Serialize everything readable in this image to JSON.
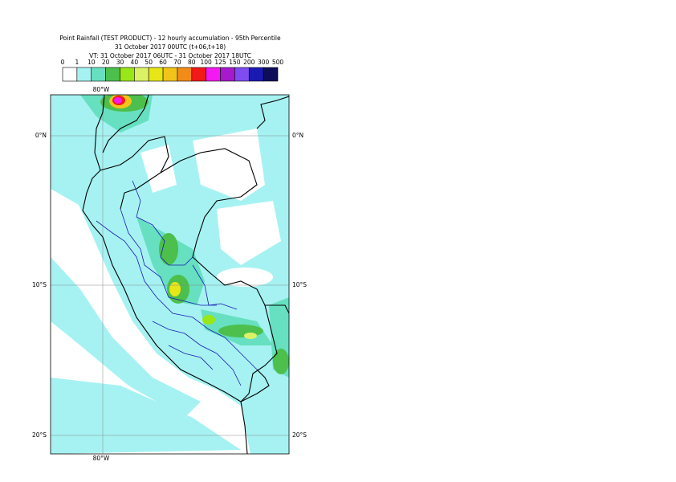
{
  "header": {
    "title_lines": [
      "Point Rainfall (TEST PRODUCT) - 12 hourly accumulation - 95th Percentile",
      "31 October 2017 00UTC (t+06,t+18)",
      "VT: 31 October 2017 06UTC - 31 October 2017 18UTC"
    ]
  },
  "legend": {
    "labels": [
      "0",
      "1",
      "10",
      "20",
      "30",
      "40",
      "50",
      "60",
      "70",
      "80",
      "100",
      "125",
      "150",
      "200",
      "300",
      "500"
    ],
    "colors": [
      "#ffffff",
      "#a6f2f2",
      "#66e0c0",
      "#4cbf4c",
      "#99e619",
      "#dcf266",
      "#e6e619",
      "#f2c419",
      "#f28c19",
      "#f21919",
      "#f219f2",
      "#a619cc",
      "#7f4cf2",
      "#1a1ab3",
      "#0d0d59"
    ]
  },
  "map": {
    "lon_label": "80°W",
    "lat_labels": [
      "0°N",
      "10°S",
      "20°S"
    ]
  }
}
